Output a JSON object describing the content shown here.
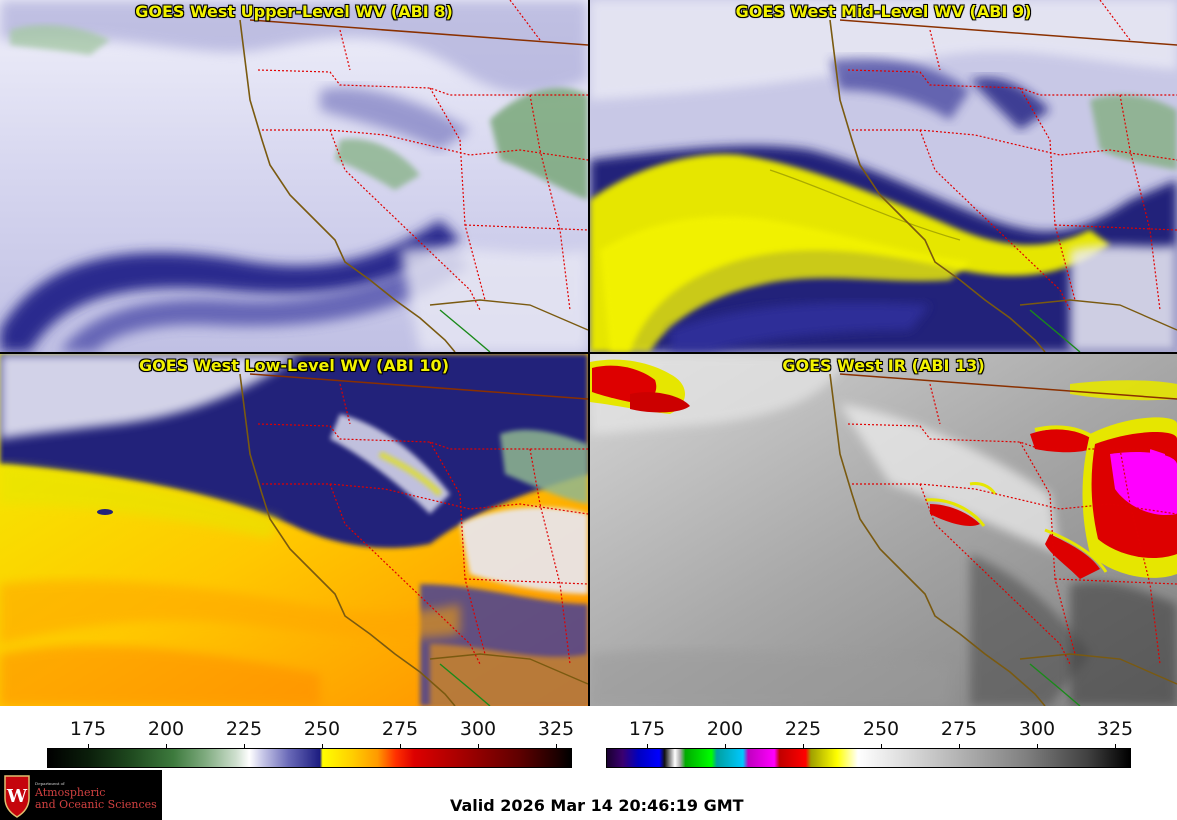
{
  "panels": [
    {
      "title": "GOES West Upper-Level WV (ABI 8)"
    },
    {
      "title": "GOES West Mid-Level WV (ABI 9)"
    },
    {
      "title": "GOES West Low-Level WV (ABI 10)"
    },
    {
      "title": "GOES West IR (ABI 13)"
    }
  ],
  "colorbars": {
    "left": {
      "ticks": [
        "175",
        "200",
        "225",
        "250",
        "275",
        "300",
        "325"
      ]
    },
    "right": {
      "ticks": [
        "175",
        "200",
        "225",
        "250",
        "275",
        "300",
        "325"
      ]
    }
  },
  "footer": {
    "valid_text": "Valid 2026 Mar 14 20:46:19 GMT"
  },
  "logo": {
    "department": "Department of",
    "line1": "Atmospheric",
    "line2": "and Oceanic Sciences",
    "crest_letter": "W"
  },
  "colors": {
    "title_yellow": "#f2f200",
    "wv_dark": "#1c1c80",
    "wv_light": "#e6e6f5",
    "dry_yellow": "#e6e600",
    "warm_orange": "#ff9a00",
    "ir_hot": "#dd0000",
    "ir_magenta": "#ff00ff",
    "border_red": "#e00000",
    "coast_line": "#8a5a10"
  }
}
